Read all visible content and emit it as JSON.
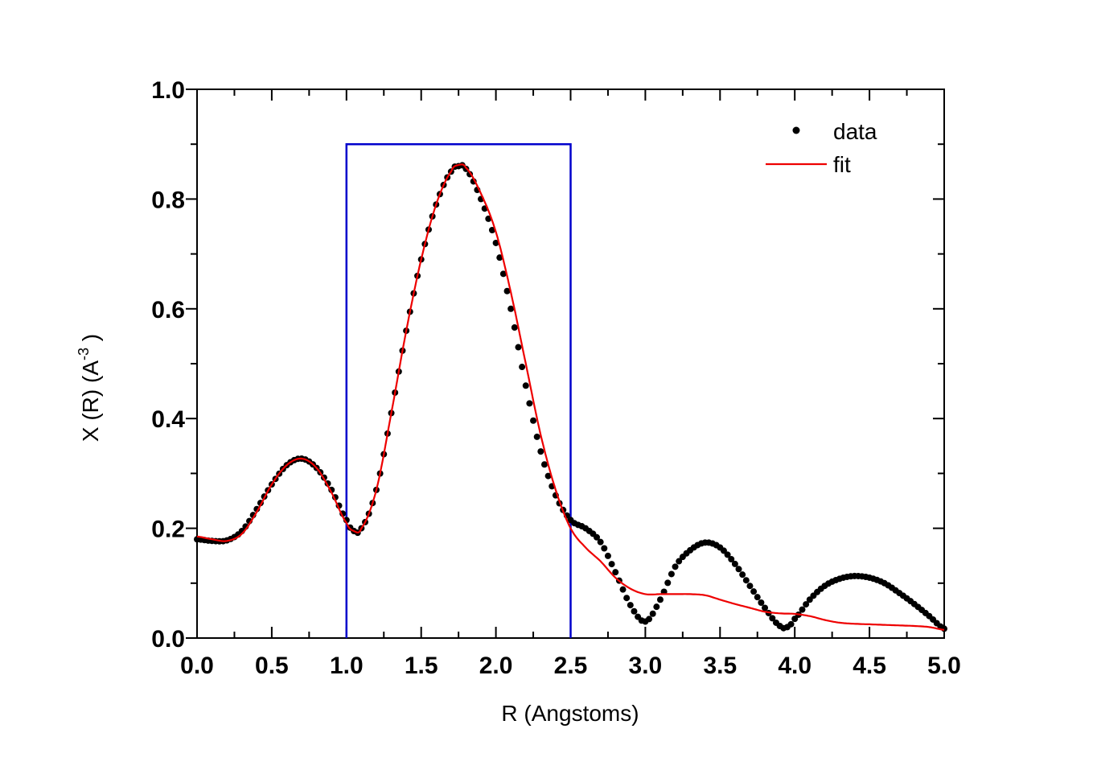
{
  "chart_data": {
    "type": "scatter",
    "xlabel": "R (Angstoms)",
    "ylabel": {
      "main": "X (R) (A",
      "sup": "-3",
      "close": " )"
    },
    "xlim": [
      0,
      5
    ],
    "ylim": [
      0,
      1
    ],
    "xticks": [
      "0.0",
      "0.5",
      "1.0",
      "1.5",
      "2.0",
      "2.5",
      "3.0",
      "3.5",
      "4.0",
      "4.5",
      "5.0"
    ],
    "yticks": [
      "0.0",
      "0.2",
      "0.4",
      "0.6",
      "0.8",
      "1.0"
    ],
    "grid": false,
    "legend_position": "top-right",
    "window": {
      "x_start": 1.0,
      "x_end": 2.5,
      "height": 0.9,
      "color": "#0000cc"
    },
    "series": [
      {
        "name": "data",
        "style": "dots",
        "color": "#000000",
        "x": [
          0.0,
          0.1,
          0.2,
          0.3,
          0.4,
          0.5,
          0.6,
          0.7,
          0.8,
          0.9,
          1.0,
          1.05,
          1.1,
          1.2,
          1.3,
          1.4,
          1.5,
          1.6,
          1.7,
          1.75,
          1.8,
          1.9,
          2.0,
          2.1,
          2.2,
          2.3,
          2.4,
          2.5,
          2.6,
          2.7,
          2.8,
          2.9,
          3.0,
          3.1,
          3.2,
          3.3,
          3.4,
          3.5,
          3.6,
          3.7,
          3.8,
          3.9,
          3.95,
          4.0,
          4.1,
          4.2,
          4.3,
          4.4,
          4.5,
          4.6,
          4.7,
          4.8,
          4.9,
          5.0
        ],
        "y": [
          0.18,
          0.177,
          0.178,
          0.195,
          0.235,
          0.28,
          0.315,
          0.327,
          0.31,
          0.27,
          0.215,
          0.195,
          0.2,
          0.27,
          0.41,
          0.56,
          0.69,
          0.79,
          0.85,
          0.86,
          0.855,
          0.8,
          0.72,
          0.6,
          0.46,
          0.34,
          0.26,
          0.215,
          0.2,
          0.175,
          0.12,
          0.06,
          0.03,
          0.07,
          0.13,
          0.16,
          0.174,
          0.165,
          0.135,
          0.095,
          0.055,
          0.022,
          0.02,
          0.035,
          0.07,
          0.095,
          0.108,
          0.113,
          0.11,
          0.1,
          0.082,
          0.062,
          0.04,
          0.017
        ]
      },
      {
        "name": "fit",
        "style": "line",
        "color": "#ee0000",
        "x": [
          0.0,
          0.1,
          0.2,
          0.3,
          0.4,
          0.5,
          0.6,
          0.7,
          0.8,
          0.9,
          1.0,
          1.05,
          1.1,
          1.2,
          1.3,
          1.4,
          1.5,
          1.6,
          1.7,
          1.75,
          1.8,
          1.9,
          2.0,
          2.1,
          2.2,
          2.3,
          2.4,
          2.5,
          2.6,
          2.7,
          2.8,
          2.9,
          3.0,
          3.1,
          3.2,
          3.3,
          3.4,
          3.5,
          3.6,
          3.7,
          3.8,
          3.9,
          4.0,
          4.1,
          4.2,
          4.3,
          4.4,
          4.5,
          4.6,
          4.7,
          4.8,
          4.9,
          5.0
        ],
        "y": [
          0.185,
          0.18,
          0.177,
          0.19,
          0.23,
          0.28,
          0.315,
          0.327,
          0.31,
          0.265,
          0.21,
          0.195,
          0.2,
          0.27,
          0.41,
          0.56,
          0.69,
          0.79,
          0.85,
          0.862,
          0.857,
          0.81,
          0.74,
          0.63,
          0.5,
          0.37,
          0.27,
          0.2,
          0.165,
          0.14,
          0.11,
          0.09,
          0.08,
          0.08,
          0.08,
          0.08,
          0.078,
          0.07,
          0.062,
          0.055,
          0.048,
          0.045,
          0.044,
          0.04,
          0.033,
          0.028,
          0.026,
          0.025,
          0.024,
          0.023,
          0.022,
          0.02,
          0.015
        ]
      }
    ]
  }
}
